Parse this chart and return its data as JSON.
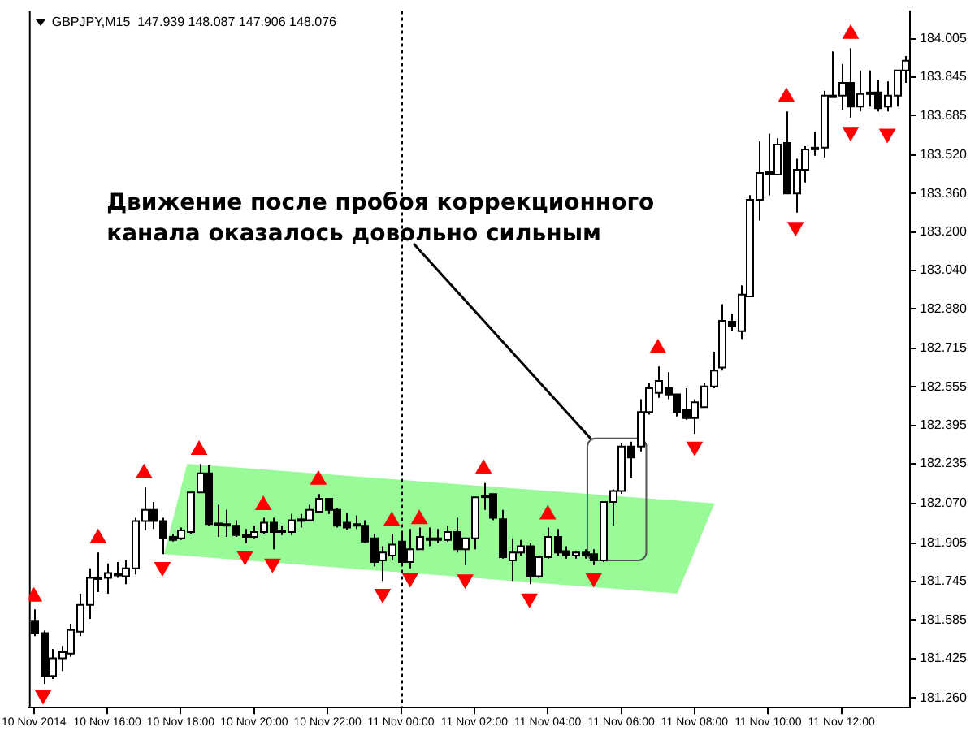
{
  "chart_data": {
    "type": "candlestick",
    "title": "GBPJPY,M15  147.939 148.087 147.906 148.076",
    "annotations": [
      "Движение после пробоя коррекционного канала оказалось довольно сильным"
    ],
    "x": [
      "2014-11-10T14:00",
      "2014-11-10T14:15",
      "2014-11-10T14:30",
      "2014-11-10T14:45",
      "2014-11-10T15:00",
      "2014-11-10T15:15",
      "2014-11-10T15:30",
      "2014-11-10T15:45",
      "2014-11-10T16:00",
      "2014-11-10T16:15",
      "2014-11-10T16:30",
      "2014-11-10T16:45",
      "2014-11-10T17:00",
      "2014-11-10T17:15",
      "2014-11-10T17:30",
      "2014-11-10T17:45",
      "2014-11-10T18:00",
      "2014-11-10T18:15",
      "2014-11-10T18:30",
      "2014-11-10T18:45",
      "2014-11-10T19:00",
      "2014-11-10T19:15",
      "2014-11-10T19:30",
      "2014-11-10T19:45",
      "2014-11-10T20:00",
      "2014-11-10T20:15",
      "2014-11-10T20:30",
      "2014-11-10T20:45",
      "2014-11-10T21:00",
      "2014-11-10T21:15",
      "2014-11-10T21:30",
      "2014-11-10T21:45",
      "2014-11-10T22:00",
      "2014-11-10T22:15",
      "2014-11-10T22:30",
      "2014-11-10T22:45",
      "2014-11-10T23:00",
      "2014-11-10T23:15",
      "2014-11-10T23:30",
      "2014-11-10T23:45",
      "2014-11-11T00:00",
      "2014-11-11T00:15",
      "2014-11-11T00:30",
      "2014-11-11T00:45",
      "2014-11-11T01:00",
      "2014-11-11T01:15",
      "2014-11-11T01:30",
      "2014-11-11T01:45",
      "2014-11-11T02:00",
      "2014-11-11T02:15",
      "2014-11-11T02:30",
      "2014-11-11T02:45",
      "2014-11-11T03:00",
      "2014-11-11T03:15",
      "2014-11-11T03:30",
      "2014-11-11T03:45",
      "2014-11-11T04:00",
      "2014-11-11T04:15",
      "2014-11-11T04:30",
      "2014-11-11T04:45",
      "2014-11-11T05:00",
      "2014-11-11T05:15",
      "2014-11-11T05:30",
      "2014-11-11T05:45",
      "2014-11-11T06:00",
      "2014-11-11T06:15",
      "2014-11-11T06:30",
      "2014-11-11T06:45",
      "2014-11-11T07:00",
      "2014-11-11T07:15",
      "2014-11-11T07:30",
      "2014-11-11T07:45",
      "2014-11-11T08:00",
      "2014-11-11T08:15",
      "2014-11-11T08:30",
      "2014-11-11T08:45",
      "2014-11-11T09:00",
      "2014-11-11T09:15",
      "2014-11-11T09:30",
      "2014-11-11T09:45",
      "2014-11-11T10:00",
      "2014-11-11T10:15",
      "2014-11-11T10:30",
      "2014-11-11T10:45",
      "2014-11-11T11:00",
      "2014-11-11T11:15",
      "2014-11-11T11:30",
      "2014-11-11T11:45",
      "2014-11-11T12:00",
      "2014-11-11T12:15",
      "2014-11-11T12:30",
      "2014-11-11T12:45",
      "2014-11-11T13:00",
      "2014-11-11T13:15",
      "2014-11-11T13:30",
      "2014-11-11T13:45"
    ],
    "ohlc": [
      [
        181.582,
        181.629,
        181.517,
        181.53
      ],
      [
        181.53,
        181.54,
        181.319,
        181.352
      ],
      [
        181.352,
        181.464,
        181.339,
        181.425
      ],
      [
        181.425,
        181.477,
        181.372,
        181.451
      ],
      [
        181.445,
        181.569,
        181.431,
        181.543
      ],
      [
        181.536,
        181.694,
        181.517,
        181.648
      ],
      [
        181.648,
        181.8,
        181.589,
        181.76
      ],
      [
        181.758,
        181.866,
        181.701,
        181.762
      ],
      [
        181.76,
        181.82,
        181.694,
        181.78
      ],
      [
        181.777,
        181.826,
        181.76,
        181.774
      ],
      [
        181.767,
        181.833,
        181.734,
        181.8
      ],
      [
        181.8,
        182.01,
        181.774,
        181.997
      ],
      [
        181.997,
        182.136,
        181.958,
        182.043
      ],
      [
        182.043,
        182.076,
        181.964,
        181.997
      ],
      [
        181.997,
        182.01,
        181.859,
        181.925
      ],
      [
        181.931,
        181.944,
        181.911,
        181.918
      ],
      [
        181.925,
        181.97,
        181.918,
        181.958
      ],
      [
        181.951,
        182.116,
        181.944,
        182.116
      ],
      [
        182.116,
        182.234,
        182.116,
        182.195
      ],
      [
        182.195,
        182.228,
        181.977,
        181.984
      ],
      [
        181.987,
        182.064,
        181.931,
        181.984
      ],
      [
        181.984,
        182.044,
        181.931,
        181.977
      ],
      [
        181.977,
        182.0,
        181.931,
        181.938
      ],
      [
        181.938,
        181.964,
        181.905,
        181.931
      ],
      [
        181.931,
        181.977,
        181.925,
        181.951
      ],
      [
        181.951,
        182.01,
        181.944,
        181.99
      ],
      [
        181.99,
        182.01,
        181.879,
        181.951
      ],
      [
        181.951,
        181.977,
        181.938,
        181.958
      ],
      [
        181.951,
        182.026,
        181.938,
        182.0
      ],
      [
        182.0,
        182.026,
        181.97,
        182.004
      ],
      [
        182.0,
        182.064,
        182.0,
        182.043
      ],
      [
        182.036,
        182.109,
        182.036,
        182.09
      ],
      [
        182.09,
        182.09,
        182.026,
        182.043
      ],
      [
        182.043,
        182.05,
        181.97,
        181.977
      ],
      [
        181.99,
        182.03,
        181.96,
        181.97
      ],
      [
        181.984,
        182.02,
        181.964,
        181.98
      ],
      [
        181.977,
        182.0,
        181.905,
        181.911
      ],
      [
        181.925,
        181.944,
        181.807,
        181.826
      ],
      [
        181.833,
        181.892,
        181.747,
        181.866
      ],
      [
        181.853,
        181.944,
        181.833,
        181.899
      ],
      [
        181.911,
        181.944,
        181.813,
        181.826
      ],
      [
        181.826,
        181.964,
        181.8,
        181.879
      ],
      [
        181.879,
        181.97,
        181.879,
        181.931
      ],
      [
        181.925,
        181.97,
        181.892,
        181.925
      ],
      [
        181.925,
        181.964,
        181.905,
        181.918
      ],
      [
        181.918,
        181.977,
        181.911,
        181.951
      ],
      [
        181.951,
        182.01,
        181.866,
        181.879
      ],
      [
        181.879,
        181.925,
        181.813,
        181.925
      ],
      [
        181.925,
        182.096,
        181.879,
        182.096
      ],
      [
        182.1,
        182.155,
        182.043,
        182.103
      ],
      [
        182.109,
        182.109,
        182.0,
        182.01
      ],
      [
        182.004,
        182.043,
        181.84,
        181.846
      ],
      [
        181.833,
        181.925,
        181.747,
        181.866
      ],
      [
        181.866,
        181.918,
        181.853,
        181.892
      ],
      [
        181.892,
        181.905,
        181.734,
        181.767
      ],
      [
        181.767,
        181.853,
        181.76,
        181.846
      ],
      [
        181.846,
        181.97,
        181.84,
        181.931
      ],
      [
        181.931,
        181.964,
        181.853,
        181.866
      ],
      [
        181.872,
        181.892,
        181.84,
        181.853
      ],
      [
        181.853,
        181.872,
        181.84,
        181.866
      ],
      [
        181.866,
        181.879,
        181.84,
        181.853
      ],
      [
        181.859,
        181.879,
        181.813,
        181.833
      ],
      [
        181.833,
        182.076,
        181.826,
        182.076
      ],
      [
        182.076,
        182.129,
        181.977,
        182.122
      ],
      [
        182.122,
        182.32,
        182.11,
        182.307
      ],
      [
        182.307,
        182.327,
        182.175,
        182.261
      ],
      [
        182.307,
        182.504,
        182.287,
        182.451
      ],
      [
        182.451,
        182.57,
        182.44,
        182.55
      ],
      [
        182.53,
        182.64,
        182.51,
        182.58
      ],
      [
        182.55,
        182.616,
        182.504,
        182.523
      ],
      [
        182.524,
        182.524,
        182.432,
        182.451
      ],
      [
        182.458,
        182.55,
        182.419,
        182.425
      ],
      [
        182.425,
        182.504,
        182.359,
        182.491
      ],
      [
        182.471,
        182.57,
        182.471,
        182.557
      ],
      [
        182.557,
        182.702,
        182.55,
        182.623
      ],
      [
        182.636,
        182.9,
        182.623,
        182.83
      ],
      [
        182.827,
        182.86,
        182.79,
        182.807
      ],
      [
        182.787,
        182.978,
        182.755,
        182.939
      ],
      [
        182.932,
        183.354,
        182.932,
        183.334
      ],
      [
        183.334,
        183.577,
        183.248,
        183.446
      ],
      [
        183.452,
        183.61,
        183.353,
        183.439
      ],
      [
        183.439,
        183.59,
        183.439,
        183.564
      ],
      [
        183.571,
        183.702,
        183.36,
        183.36
      ],
      [
        183.36,
        183.505,
        183.281,
        183.459
      ],
      [
        183.459,
        183.557,
        183.406,
        183.544
      ],
      [
        183.551,
        183.617,
        183.518,
        183.551
      ],
      [
        183.551,
        183.788,
        183.511,
        183.768
      ],
      [
        183.768,
        183.952,
        183.768,
        183.768
      ],
      [
        183.768,
        183.9,
        183.709,
        183.821
      ],
      [
        183.821,
        183.966,
        183.676,
        183.722
      ],
      [
        183.722,
        183.873,
        183.702,
        183.775
      ],
      [
        183.781,
        183.873,
        183.722,
        183.781
      ],
      [
        183.781,
        183.834,
        183.702,
        183.715
      ],
      [
        183.722,
        183.827,
        183.702,
        183.768
      ],
      [
        183.768,
        183.873,
        183.722,
        183.873
      ],
      [
        183.873,
        183.933,
        183.821,
        183.913
      ]
    ],
    "series": [
      {
        "type": "scatter",
        "color": "#ff0000",
        "marker": "triangle",
        "x": [
          "2014-11-10T14:00",
          "2014-11-10T15:45",
          "2014-11-10T17:00",
          "2014-11-10T18:30",
          "2014-11-10T20:15",
          "2014-11-10T21:45",
          "2014-11-10T23:45",
          "2014-11-11T00:30",
          "2014-11-11T02:15",
          "2014-11-11T04:00",
          "2014-11-11T07:00",
          "2014-11-11T10:30",
          "2014-11-11T12:15"
        ],
        "values": [
          181.681,
          181.925,
          182.195,
          182.293,
          182.063,
          182.168,
          181.997,
          182.004,
          182.214,
          182.024,
          182.715,
          183.762,
          184.025
        ]
      },
      {
        "type": "scatter",
        "color": "#ff0000",
        "marker": "triangle",
        "x": [
          "2014-11-10T14:15",
          "2014-11-10T17:30",
          "2014-11-10T19:45",
          "2014-11-10T20:30",
          "2014-11-10T23:30",
          "2014-11-11T00:15",
          "2014-11-11T01:45",
          "2014-11-11T03:30",
          "2014-11-11T05:15",
          "2014-11-11T08:00",
          "2014-11-11T10:45",
          "2014-11-11T12:15",
          "2014-11-11T13:15"
        ],
        "values": [
          181.273,
          181.806,
          181.852,
          181.82,
          181.694,
          181.76,
          181.754,
          181.675,
          181.76,
          182.307,
          183.222,
          183.617,
          183.61
        ]
      }
    ],
    "xlim": [
      "2014-11-10T13:52",
      "2014-11-11T13:52"
    ],
    "xticks": [
      {
        "value": "2014-11-10T14:00",
        "label": "10 Nov 2014"
      },
      {
        "value": "2014-11-10T16:00",
        "label": "10 Nov 16:00"
      },
      {
        "value": "2014-11-10T18:00",
        "label": "10 Nov 18:00"
      },
      {
        "value": "2014-11-10T20:00",
        "label": "10 Nov 20:00"
      },
      {
        "value": "2014-11-10T22:00",
        "label": "10 Nov 22:00"
      },
      {
        "value": "2014-11-11T00:00",
        "label": "11 Nov 00:00"
      },
      {
        "value": "2014-11-11T02:00",
        "label": "11 Nov 02:00"
      },
      {
        "value": "2014-11-11T04:00",
        "label": "11 Nov 04:00"
      },
      {
        "value": "2014-11-11T06:00",
        "label": "11 Nov 06:00"
      },
      {
        "value": "2014-11-11T08:00",
        "label": "11 Nov 08:00"
      },
      {
        "value": "2014-11-11T10:00",
        "label": "11 Nov 10:00"
      },
      {
        "value": "2014-11-11T12:00",
        "label": "11 Nov 12:00"
      }
    ],
    "ylim": [
      181.22,
      184.12
    ],
    "yticks": [
      184.005,
      183.845,
      183.685,
      {
        "value": 183.52,
        "label": "183.520"
      },
      {
        "value": 183.36,
        "label": "183.360"
      },
      {
        "value": 183.2,
        "label": "183.200"
      },
      {
        "value": 183.04,
        "label": "183.040"
      },
      {
        "value": 182.88,
        "label": "182.880"
      },
      182.715,
      182.555,
      182.395,
      182.235,
      {
        "value": 182.07,
        "label": "182.070"
      },
      181.905,
      181.745,
      181.585,
      181.425,
      {
        "value": 181.26,
        "label": "181.260"
      }
    ],
    "ref_lines": [
      {
        "axis": "x",
        "value": "2014-11-11T00:00",
        "color": "#000000",
        "line_style": "dotted"
      }
    ]
  }
}
